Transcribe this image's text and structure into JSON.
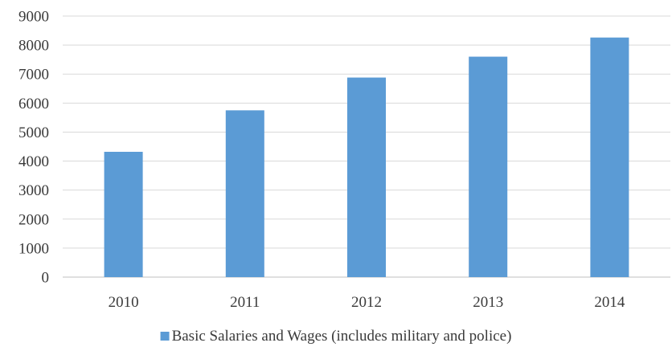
{
  "chart_data": {
    "type": "bar",
    "categories": [
      "2010",
      "2011",
      "2012",
      "2013",
      "2014"
    ],
    "series": [
      {
        "name": "Basic Salaries and Wages (includes military and police)",
        "values": [
          4320,
          5750,
          6880,
          7600,
          8260
        ],
        "color": "#5B9BD5"
      }
    ],
    "title": "",
    "xlabel": "",
    "ylabel": "",
    "ylim": [
      0,
      9000
    ],
    "yticks": [
      "0",
      "1000",
      "2000",
      "3000",
      "4000",
      "5000",
      "6000",
      "7000",
      "8000",
      "9000"
    ],
    "grid": true,
    "legend_position": "bottom"
  },
  "colors": {
    "gridline": "#d9d9d9",
    "axis": "#bfbfbf",
    "text": "#3a3a3a"
  }
}
